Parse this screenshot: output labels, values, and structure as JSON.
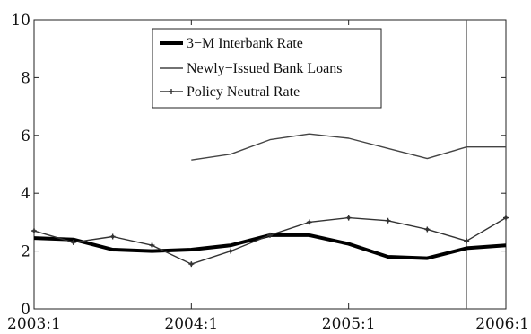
{
  "chart_data": {
    "type": "line",
    "x_ticks": [
      "2003:1",
      "2004:1",
      "2005:1",
      "2006:1"
    ],
    "x": [
      2003.0,
      2003.25,
      2003.5,
      2003.75,
      2004.0,
      2004.25,
      2004.5,
      2004.75,
      2005.0,
      2005.25,
      2005.5,
      2005.75,
      2006.0
    ],
    "xlim": [
      2003.0,
      2006.0
    ],
    "ylim": [
      0,
      10
    ],
    "y_ticks": [
      "0",
      "2",
      "4",
      "6",
      "8",
      "10"
    ],
    "grid": false,
    "legend_position": "top-center",
    "series": [
      {
        "name": "3−M Interbank Rate",
        "style": "thick",
        "color": "#000000",
        "values": [
          2.45,
          2.4,
          2.05,
          2.0,
          2.05,
          2.2,
          2.55,
          2.55,
          2.25,
          1.8,
          1.75,
          2.1,
          2.2
        ]
      },
      {
        "name": "Newly−Issued Bank Loans",
        "style": "thin",
        "color": "#444444",
        "values": [
          null,
          null,
          null,
          null,
          5.15,
          5.35,
          5.85,
          6.05,
          5.9,
          5.55,
          5.2,
          5.6,
          5.6
        ]
      },
      {
        "name": "Policy Neutral Rate",
        "style": "markers",
        "color": "#333333",
        "values": [
          2.7,
          2.3,
          2.5,
          2.2,
          1.55,
          2.0,
          2.55,
          3.0,
          3.15,
          3.05,
          2.75,
          2.35,
          3.15
        ]
      }
    ],
    "vertical_line_x": 2005.75
  }
}
